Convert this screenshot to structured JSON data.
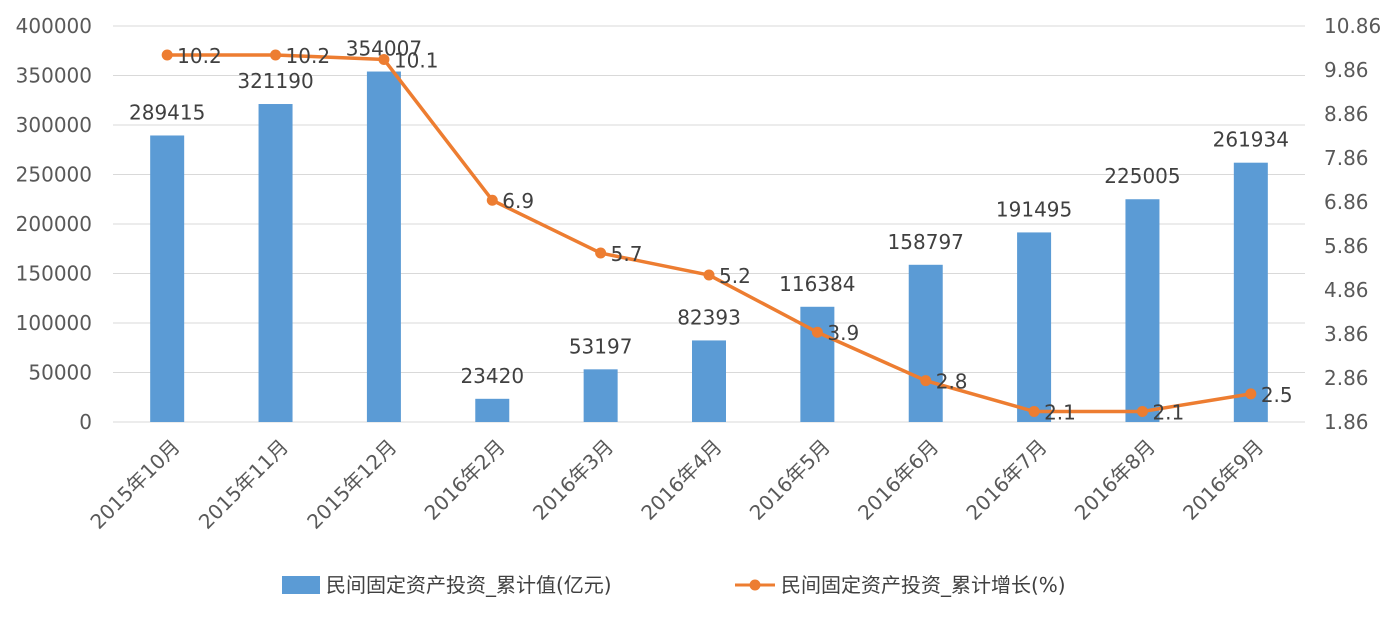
{
  "chart_data": {
    "type": "bar+line",
    "title": "",
    "categories": [
      "2015年10月",
      "2015年11月",
      "2015年12月",
      "2016年2月",
      "2016年3月",
      "2016年4月",
      "2016年5月",
      "2016年6月",
      "2016年7月",
      "2016年8月",
      "2016年9月"
    ],
    "series": [
      {
        "name": "民间固定资产投资_累计值(亿元)",
        "type": "bar",
        "axis": "left",
        "color": "#5b9bd5",
        "values": [
          289415,
          321190,
          354007,
          23420,
          53197,
          82393,
          116384,
          158797,
          191495,
          225005,
          261934
        ],
        "labels": [
          "289415",
          "321190",
          "354007",
          "23420",
          "53197",
          "82393",
          "116384",
          "158797",
          "191495",
          "225005",
          "261934"
        ]
      },
      {
        "name": "民间固定资产投资_累计增长(%)",
        "type": "line",
        "axis": "right",
        "color": "#ed7d31",
        "values": [
          10.2,
          10.2,
          10.1,
          6.9,
          5.7,
          5.2,
          3.9,
          2.8,
          2.1,
          2.1,
          2.5
        ],
        "labels": [
          "10.2",
          "10.2",
          "10.1",
          "6.9",
          "5.7",
          "5.2",
          "3.9",
          "2.8",
          "2.1",
          "2.1",
          "2.5"
        ]
      }
    ],
    "y_left": {
      "range": [
        0,
        400000
      ],
      "ticks": [
        "0",
        "50000",
        "100000",
        "150000",
        "200000",
        "250000",
        "300000",
        "350000",
        "400000"
      ]
    },
    "y_right": {
      "range": [
        1.86,
        10.86
      ],
      "ticks": [
        "1.86",
        "2.86",
        "3.86",
        "4.86",
        "5.86",
        "6.86",
        "7.86",
        "8.86",
        "9.86",
        "10.86"
      ]
    },
    "grid": true,
    "legend": "bottom"
  }
}
